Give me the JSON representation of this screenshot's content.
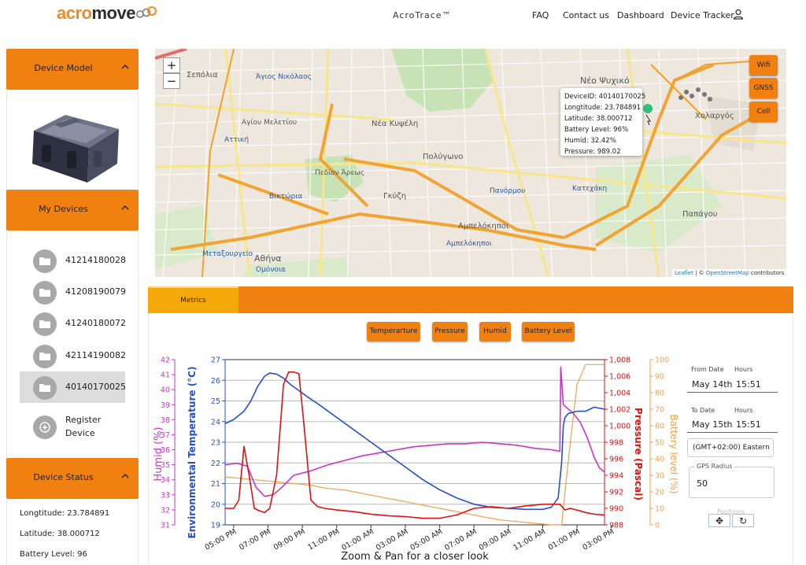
{
  "header": {
    "logo_a": "acro",
    "logo_b": "move",
    "app_title": "AcroTrace™",
    "nav": [
      "FAQ",
      "Contact us",
      "Dashboard",
      "Device Tracker"
    ]
  },
  "sidebar": {
    "device_model_title": "Device Model",
    "my_devices_title": "My Devices",
    "devices": [
      "41214180028",
      "41208190079",
      "41240180072",
      "42114190082",
      "40140170025"
    ],
    "selected_device": "40140170025",
    "register_label_1": "Register",
    "register_label_2": "Device",
    "device_status_title": "Device Status",
    "status": [
      "Longtitude: 23.784891",
      "Latitude: 38.000712",
      "Battery Level: 96"
    ]
  },
  "map": {
    "zoom_in": "+",
    "zoom_out": "−",
    "layers": [
      "Wifi",
      "GNSS",
      "Cell"
    ],
    "tooltip": [
      "DeviceID: 40140170025",
      "Longtitude: 23.784891",
      "Latitude: 38.000712",
      "Battery Level: 96%",
      "Humid: 32.42%",
      "Pressure: 989.02"
    ],
    "attribution_leaflet": "Leaflet",
    "attribution_sep": " | © ",
    "attribution_osm": "OpenStreetMap",
    "attribution_tail": " contributors",
    "place_labels": [
      "Νέο Ψυχικό",
      "Νέα Κυψέλη",
      "Πολύγωνο",
      "Γκύζη",
      "Αμπελόκηποι",
      "Αθήνα",
      "Χολαργός",
      "Παπάγου",
      "Πανόρμου",
      "Κατεχάκη",
      "Βικτώρια",
      "Μεταξουργείο",
      "Αττική",
      "Ομόνοια",
      "Άγιος Νικόλαος",
      "Σεπόλια",
      "Αγίου Μελετίου",
      "Πεδίον Άρεως",
      "Αμπελόκηποι"
    ]
  },
  "metrics": {
    "tab_label": "Metrics",
    "buttons": [
      "Temperarture",
      "Pressure",
      "Humid",
      "Battery Level"
    ]
  },
  "controls": {
    "from_date_label": "From Date",
    "from_hours_label": "Hours",
    "from_date": "May 14th",
    "from_time": "15:51",
    "to_date_label": "To Date",
    "to_hours_label": "Hours",
    "to_date": "May 15th",
    "to_time": "15:51",
    "timezone": "(GMT+02:00) Eastern",
    "gps_label": "GPS Radius",
    "gps_value": "50",
    "toolbar_ghost": "Positions",
    "pan_icon": "✥",
    "reset_icon": "↻"
  },
  "colors": {
    "accent": "#f08010",
    "temperature": "#2450d0",
    "pressure": "#dd1111",
    "humid": "#cc33cc",
    "battery": "#f0a050"
  },
  "chart_data": {
    "type": "line",
    "xlabel": "Zoom & Pan for a closer look",
    "x_ticks": [
      "05:00 PM",
      "07:00 PM",
      "09:00 PM",
      "11:00 PM",
      "01:00 AM",
      "03:00 AM",
      "05:00 AM",
      "07:00 AM",
      "09:00 AM",
      "11:00 AM",
      "01:00 PM",
      "03:00 PM"
    ],
    "axes": {
      "humid": {
        "label": "Humid (%)",
        "ticks": [
          31,
          32,
          33,
          34,
          35,
          36,
          37,
          38,
          39,
          40,
          41,
          42
        ],
        "range": [
          31,
          42
        ]
      },
      "temperature": {
        "label": "Environmental Temperature (°C)",
        "ticks": [
          19,
          20,
          21,
          22,
          23,
          24,
          25,
          26,
          27
        ],
        "range": [
          19,
          27
        ]
      },
      "pressure": {
        "label": "Pressure (Pascal)",
        "ticks": [
          "988",
          "990",
          "992",
          "994",
          "996",
          "998",
          "1,000",
          "1,002",
          "1,004",
          "1,006",
          "1,008"
        ],
        "range": [
          988,
          1008
        ]
      },
      "battery": {
        "label": "Battery level (%)",
        "ticks": [
          0,
          10,
          20,
          30,
          40,
          50,
          60,
          70,
          80,
          90,
          100
        ],
        "range": [
          0,
          100
        ]
      }
    },
    "series": [
      {
        "name": "Temperarture",
        "axis": "temperature",
        "x": [
          16.5,
          17.0,
          17.6,
          18.0,
          18.4,
          18.8,
          19.1,
          19.5,
          19.9,
          20.3,
          20.8,
          21.3,
          22,
          23,
          24,
          25,
          26,
          27,
          28,
          29,
          30,
          31,
          32,
          33,
          34,
          35,
          35.5,
          35.9,
          36.1,
          36.2,
          36.3,
          36.5,
          37,
          37.5,
          38,
          38.6
        ],
        "y": [
          23.9,
          24.1,
          24.5,
          25.0,
          25.7,
          26.2,
          26.35,
          26.3,
          26.1,
          25.8,
          25.5,
          25.2,
          24.8,
          24.2,
          23.6,
          23.0,
          22.4,
          21.8,
          21.2,
          20.7,
          20.3,
          20.0,
          19.85,
          19.8,
          19.75,
          19.75,
          19.85,
          20.3,
          22.0,
          23.8,
          24.2,
          24.4,
          24.5,
          24.5,
          24.7,
          24.6
        ]
      },
      {
        "name": "Pressure",
        "axis": "pressure",
        "x": [
          16.5,
          17.0,
          17.3,
          17.6,
          17.9,
          18.2,
          18.5,
          18.8,
          19.1,
          19.5,
          19.9,
          20.2,
          20.5,
          20.8,
          21.1,
          21.5,
          21.9,
          22.3,
          23,
          24,
          25,
          26,
          27,
          28,
          29,
          30,
          31,
          32,
          33,
          34,
          35,
          35.5,
          36.0,
          36.3,
          36.6,
          37,
          37.5,
          38,
          38.6
        ],
        "y": [
          990.0,
          990.0,
          991.0,
          997.5,
          994.0,
          990.0,
          989.7,
          989.5,
          990.0,
          994.0,
          1005.0,
          1006.5,
          1006.5,
          1006.3,
          1000.0,
          991.0,
          990.2,
          990.0,
          989.8,
          989.6,
          989.3,
          989.1,
          989.0,
          988.8,
          988.8,
          989.2,
          990.0,
          990.2,
          990.0,
          990.3,
          990.5,
          990.5,
          990.5,
          989.8,
          990.0,
          989.8,
          989.5,
          989.3,
          989.2
        ]
      },
      {
        "name": "Humid",
        "axis": "humid",
        "x": [
          16.5,
          17.2,
          17.8,
          18.3,
          18.8,
          19.3,
          19.8,
          20.5,
          21.5,
          22.5,
          23.5,
          24.5,
          25.5,
          26.5,
          27.5,
          28.5,
          29.5,
          30.5,
          31.5,
          32.5,
          33.5,
          34.5,
          35.5,
          36.0,
          36.05,
          36.2,
          36.5,
          36.8,
          37.2,
          37.6,
          38.0,
          38.3,
          38.6
        ],
        "y": [
          35.0,
          35.1,
          34.9,
          33.5,
          32.9,
          33.0,
          33.5,
          34.3,
          34.6,
          35.0,
          35.3,
          35.6,
          35.8,
          36.0,
          36.2,
          36.3,
          36.4,
          36.4,
          36.5,
          36.4,
          36.3,
          36.1,
          36.0,
          35.9,
          41.5,
          39.0,
          38.7,
          38.4,
          37.8,
          36.8,
          35.5,
          34.8,
          34.5
        ]
      },
      {
        "name": "Battery Level",
        "axis": "battery",
        "x": [
          16.5,
          17.5,
          18.5,
          19.5,
          20.5,
          21.5,
          22.5,
          23.5,
          24.5,
          25.5,
          26.5,
          27.5,
          28.5,
          29.5,
          30.5,
          31.5,
          32.5,
          33.5,
          34.5,
          35.5,
          36.1,
          36.5,
          37.0,
          37.5,
          38.0,
          38.6
        ],
        "y": [
          29,
          28,
          27,
          26,
          25,
          24,
          22,
          21,
          19,
          17,
          15,
          13,
          11,
          9,
          7,
          5,
          3,
          2,
          1,
          0,
          0,
          40,
          85,
          97,
          97,
          97
        ]
      }
    ]
  }
}
